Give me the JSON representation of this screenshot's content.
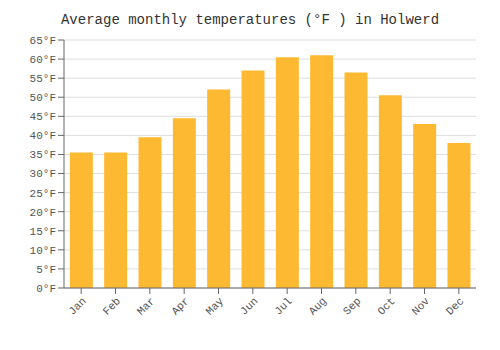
{
  "chart_data": {
    "type": "bar",
    "title": "Average monthly temperatures (°F ) in Holwerd",
    "categories": [
      "Jan",
      "Feb",
      "Mar",
      "Apr",
      "May",
      "Jun",
      "Jul",
      "Aug",
      "Sep",
      "Oct",
      "Nov",
      "Dec"
    ],
    "values": [
      35.5,
      35.5,
      39.5,
      44.5,
      52.0,
      57.0,
      60.5,
      61.0,
      56.5,
      50.5,
      43.0,
      38.0
    ],
    "color": "#FDB931",
    "ylim": [
      0,
      65
    ],
    "yticks": [
      {
        "value": 0,
        "label": "0°F"
      },
      {
        "value": 5,
        "label": "5°F"
      },
      {
        "value": 10,
        "label": "10°F"
      },
      {
        "value": 15,
        "label": "15°F"
      },
      {
        "value": 20,
        "label": "20°F"
      },
      {
        "value": 25,
        "label": "25°F"
      },
      {
        "value": 30,
        "label": "30°F"
      },
      {
        "value": 35,
        "label": "35°F"
      },
      {
        "value": 40,
        "label": "40°F"
      },
      {
        "value": 45,
        "label": "45°F"
      },
      {
        "value": 50,
        "label": "50°F"
      },
      {
        "value": 55,
        "label": "55°F"
      },
      {
        "value": 60,
        "label": "60°F"
      },
      {
        "value": 65,
        "label": "65°F"
      }
    ],
    "grid": true
  }
}
